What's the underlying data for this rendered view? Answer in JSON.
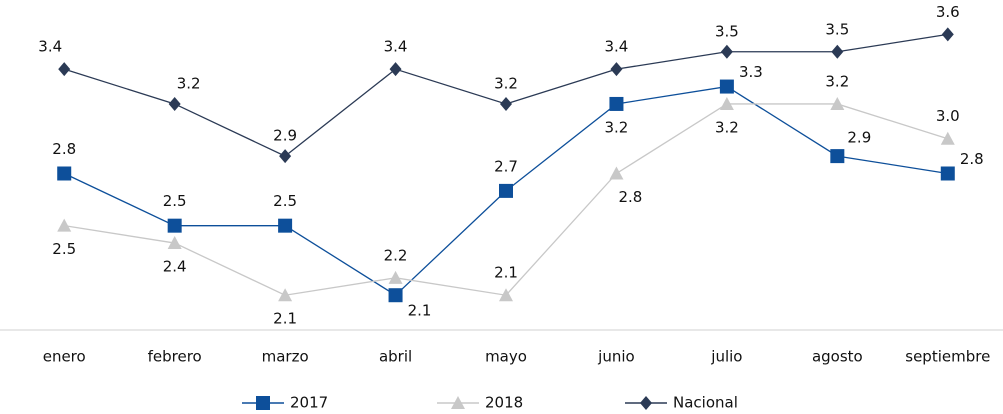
{
  "chart_data": {
    "type": "line",
    "categories": [
      "enero",
      "febrero",
      "marzo",
      "abril",
      "mayo",
      "junio",
      "julio",
      "agosto",
      "septiembre"
    ],
    "series": [
      {
        "name": "2017",
        "color": "#0d4f9a",
        "marker": "square",
        "values": [
          2.8,
          2.5,
          2.5,
          2.1,
          2.7,
          3.2,
          3.3,
          2.9,
          2.8
        ]
      },
      {
        "name": "2018",
        "color": "#c8c8c8",
        "marker": "triangle",
        "values": [
          2.5,
          2.4,
          2.1,
          2.2,
          2.1,
          2.8,
          3.2,
          3.2,
          3.0
        ],
        "value_labels": [
          "2.5",
          "2.4",
          "2.1",
          "2.2",
          "2.1",
          "2.8",
          "3.2",
          "3.2",
          "3.0"
        ]
      },
      {
        "name": "Nacional",
        "color": "#2b3a55",
        "marker": "diamond",
        "values": [
          3.4,
          3.2,
          2.9,
          3.4,
          3.2,
          3.4,
          3.5,
          3.5,
          3.6
        ]
      }
    ],
    "ylim": [
      1.9,
      3.7
    ],
    "grid": false,
    "legend": "bottom"
  }
}
